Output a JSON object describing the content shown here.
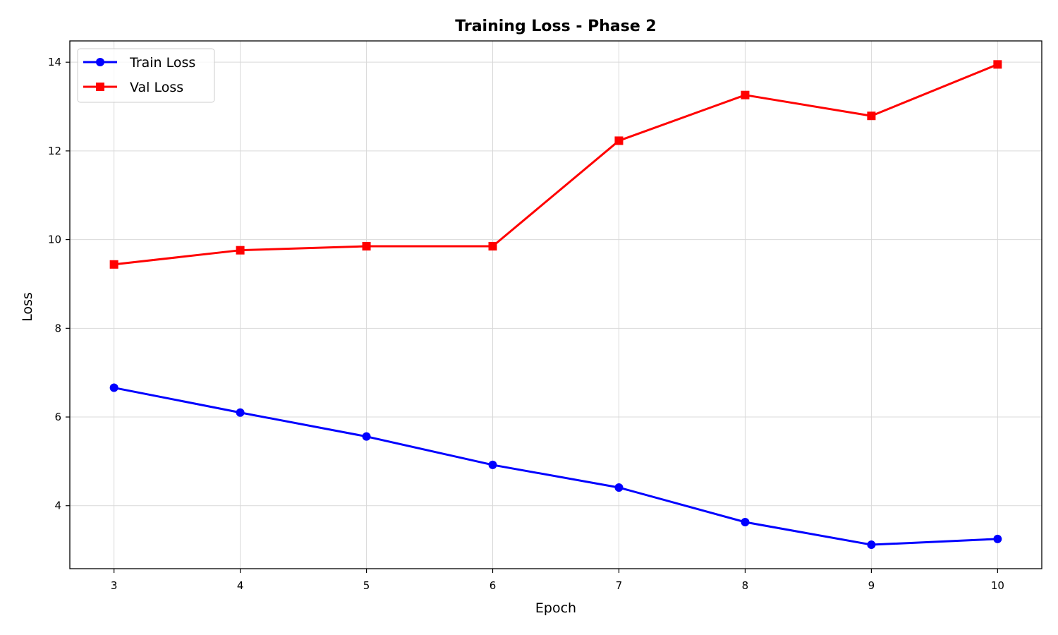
{
  "chart_data": {
    "type": "line",
    "title": "Training Loss - Phase 2",
    "xlabel": "Epoch",
    "ylabel": "Loss",
    "x": [
      3,
      4,
      5,
      6,
      7,
      8,
      9,
      10
    ],
    "xticks": [
      "3",
      "4",
      "5",
      "6",
      "7",
      "8",
      "9",
      "10"
    ],
    "yticks": [
      "4",
      "6",
      "8",
      "10",
      "12",
      "14"
    ],
    "xlim": [
      2.65,
      10.35
    ],
    "ylim": [
      2.58,
      14.48
    ],
    "grid": true,
    "legend_position": "top-left",
    "series": [
      {
        "name": "Train Loss",
        "color": "#0000ff",
        "marker": "circle",
        "values": [
          6.66,
          6.1,
          5.56,
          4.92,
          4.41,
          3.63,
          3.12,
          3.25
        ]
      },
      {
        "name": "Val Loss",
        "color": "#ff0000",
        "marker": "square",
        "values": [
          9.44,
          9.76,
          9.85,
          9.85,
          12.23,
          13.26,
          12.79,
          13.95
        ]
      }
    ]
  }
}
